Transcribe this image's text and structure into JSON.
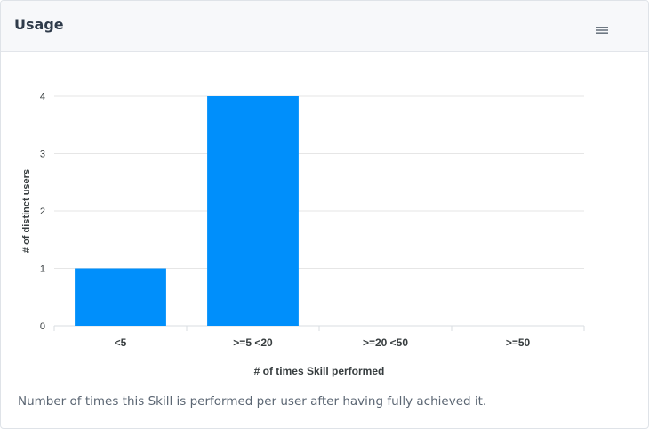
{
  "card": {
    "title": "Usage",
    "menu_icon": "hamburger-menu-icon",
    "footer_note": "Number of times this Skill is performed per user after having fully achieved it."
  },
  "chart_data": {
    "type": "bar",
    "categories": [
      "<5",
      ">=5 <20",
      ">=20 <50",
      ">=50"
    ],
    "values": [
      1,
      4,
      0,
      0
    ],
    "xlabel": "# of times Skill performed",
    "ylabel": "# of distinct users",
    "ylim": [
      0,
      4
    ],
    "yticks": [
      0,
      1,
      2,
      3,
      4
    ],
    "grid": true,
    "bar_color": "#008ffb"
  }
}
